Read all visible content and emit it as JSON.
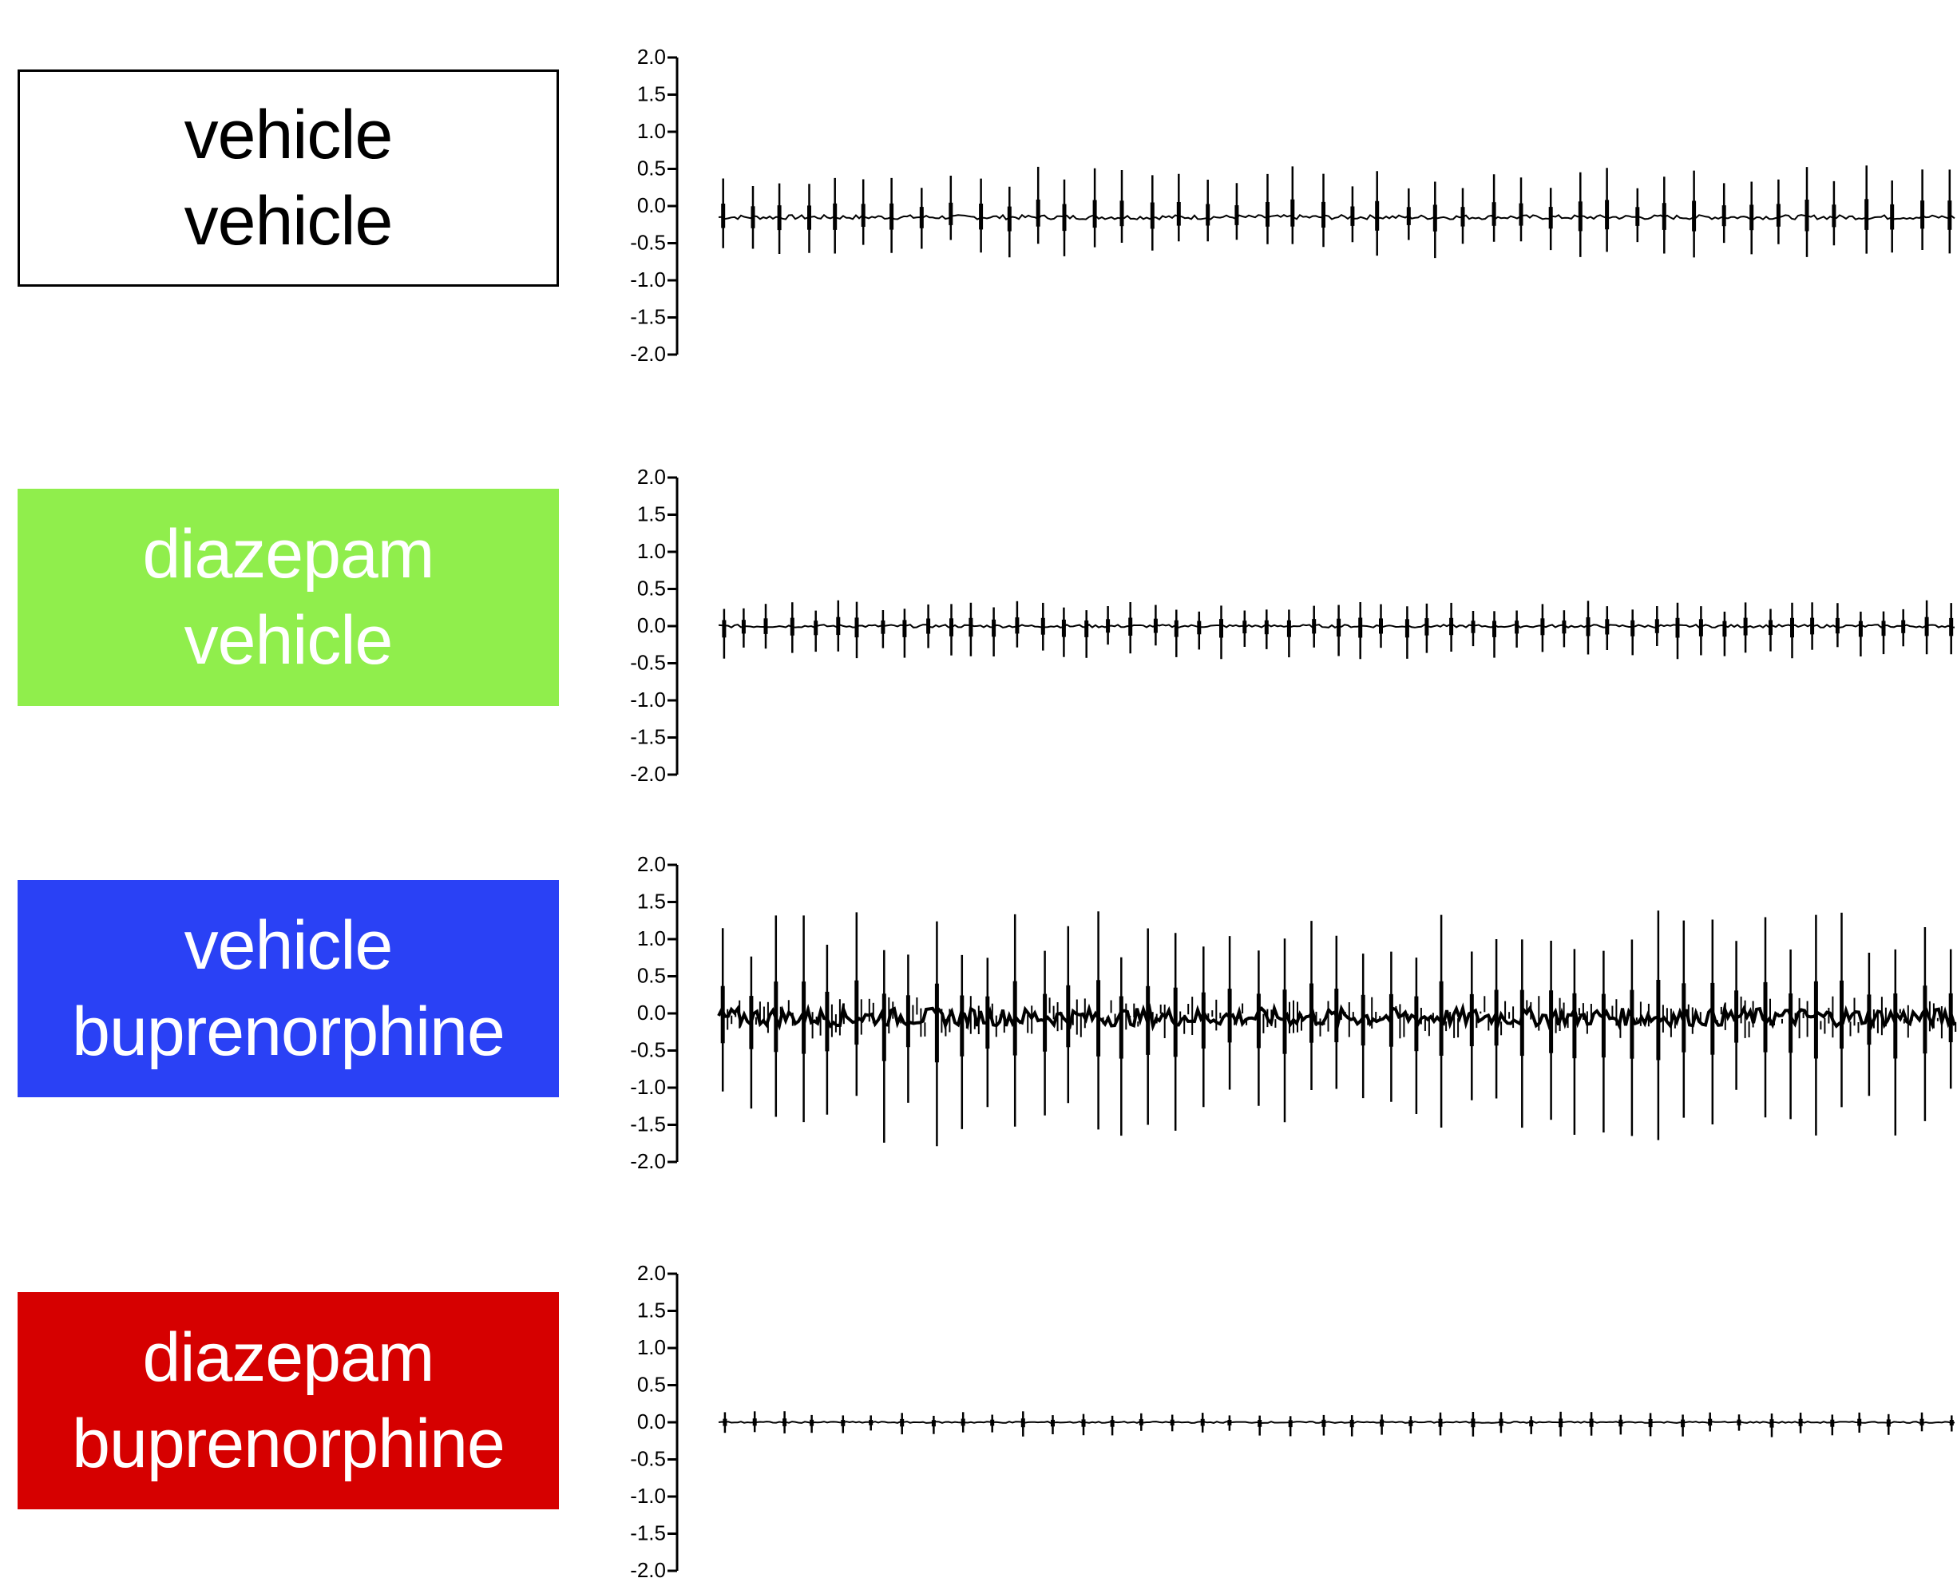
{
  "panels": [
    {
      "lines": [
        "vehicle",
        "vehicle"
      ],
      "box_color": "#ffffff",
      "text_color": "#000000",
      "border_color": "#000000"
    },
    {
      "lines": [
        "diazepam",
        "vehicle"
      ],
      "box_color": "#90ee4c",
      "text_color": "#ffffff",
      "border_color": ""
    },
    {
      "lines": [
        "vehicle",
        "buprenorphine"
      ],
      "box_color": "#2a41f5",
      "text_color": "#ffffff",
      "border_color": ""
    },
    {
      "lines": [
        "diazepam",
        "buprenorphine"
      ],
      "box_color": "#d60000",
      "text_color": "#ffffff",
      "border_color": ""
    }
  ],
  "chart_data": [
    {
      "type": "line",
      "condition": "vehicle / vehicle",
      "ylim": [
        -2.0,
        2.0
      ],
      "yticks": [
        "2.0",
        "1.5",
        "1.0",
        "0.5",
        "0.0",
        "-0.5",
        "-1.0",
        "-1.5",
        "-2.0"
      ],
      "baseline": -0.15,
      "burst_count": 44,
      "burst_peak_up": 0.55,
      "burst_peak_down": -0.7,
      "noise": 0.03
    },
    {
      "type": "line",
      "condition": "diazepam / vehicle",
      "ylim": [
        -2.0,
        2.0
      ],
      "yticks": [
        "2.0",
        "1.5",
        "1.0",
        "0.5",
        "0.0",
        "-0.5",
        "-1.0",
        "-1.5",
        "-2.0"
      ],
      "baseline": 0.0,
      "burst_count": 55,
      "burst_peak_up": 0.35,
      "burst_peak_down": -0.45,
      "noise": 0.02
    },
    {
      "type": "line",
      "condition": "vehicle / buprenorphine",
      "ylim": [
        -2.0,
        2.0
      ],
      "yticks": [
        "2.0",
        "1.5",
        "1.0",
        "0.5",
        "0.0",
        "-0.5",
        "-1.0",
        "-1.5",
        "-2.0"
      ],
      "baseline": -0.05,
      "burst_count": 47,
      "burst_peak_up": 1.4,
      "burst_peak_down": -1.8,
      "noise": 0.12
    },
    {
      "type": "line",
      "condition": "diazepam / buprenorphine",
      "ylim": [
        -2.0,
        2.0
      ],
      "yticks": [
        "2.0",
        "1.5",
        "1.0",
        "0.5",
        "0.0",
        "-0.5",
        "-1.0",
        "-1.5",
        "-2.0"
      ],
      "baseline": 0.0,
      "burst_count": 42,
      "burst_peak_up": 0.15,
      "burst_peak_down": -0.2,
      "noise": 0.01
    }
  ]
}
